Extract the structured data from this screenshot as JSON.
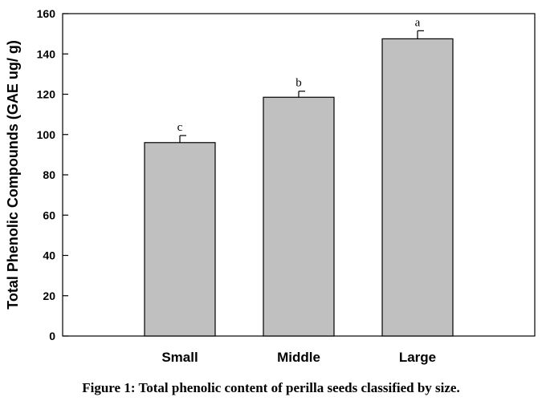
{
  "chart_data": {
    "type": "bar",
    "categories": [
      "Small",
      "Middle",
      "Large"
    ],
    "values": [
      96,
      118.5,
      147.5
    ],
    "errors": [
      3.5,
      3,
      4
    ],
    "significance": [
      "c",
      "b",
      "a"
    ],
    "ylabel": "Total Phenolic Compounds (GAE ug/ g)",
    "xlabel": "",
    "ylim": [
      0,
      160
    ],
    "yticks": [
      0,
      20,
      40,
      60,
      80,
      100,
      120,
      140,
      160
    ],
    "grid": false,
    "bar_color": "#c0c0c0"
  },
  "caption": "Figure 1: Total phenolic content of perilla seeds classified by size."
}
